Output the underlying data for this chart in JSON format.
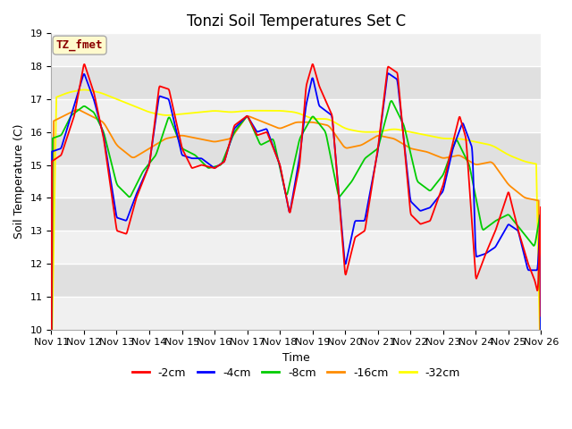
{
  "title": "Tonzi Soil Temperatures Set C",
  "xlabel": "Time",
  "ylabel": "Soil Temperature (C)",
  "ylim": [
    10.0,
    19.0
  ],
  "yticks": [
    10.0,
    11.0,
    12.0,
    13.0,
    14.0,
    15.0,
    16.0,
    17.0,
    18.0,
    19.0
  ],
  "xtick_labels": [
    "Nov 11",
    "Nov 12",
    "Nov 13",
    "Nov 14",
    "Nov 15",
    "Nov 16",
    "Nov 17",
    "Nov 18",
    "Nov 19",
    "Nov 20",
    "Nov 21",
    "Nov 22",
    "Nov 23",
    "Nov 24",
    "Nov 25",
    "Nov 26"
  ],
  "annotation": "TZ_fmet",
  "annotation_color": "#8B0000",
  "annotation_bg": "#FFFACD",
  "annotation_edge": "#AAAAAA",
  "colors": {
    "-2cm": "#FF0000",
    "-4cm": "#0000FF",
    "-8cm": "#00CC00",
    "-16cm": "#FF8C00",
    "-32cm": "#FFFF00"
  },
  "legend_labels": [
    "-2cm",
    "-4cm",
    "-8cm",
    "-16cm",
    "-32cm"
  ],
  "band_colors": [
    "#F0F0F0",
    "#E0E0E0"
  ],
  "title_fontsize": 12,
  "axis_fontsize": 9,
  "tick_fontsize": 8,
  "linewidth": 1.3
}
